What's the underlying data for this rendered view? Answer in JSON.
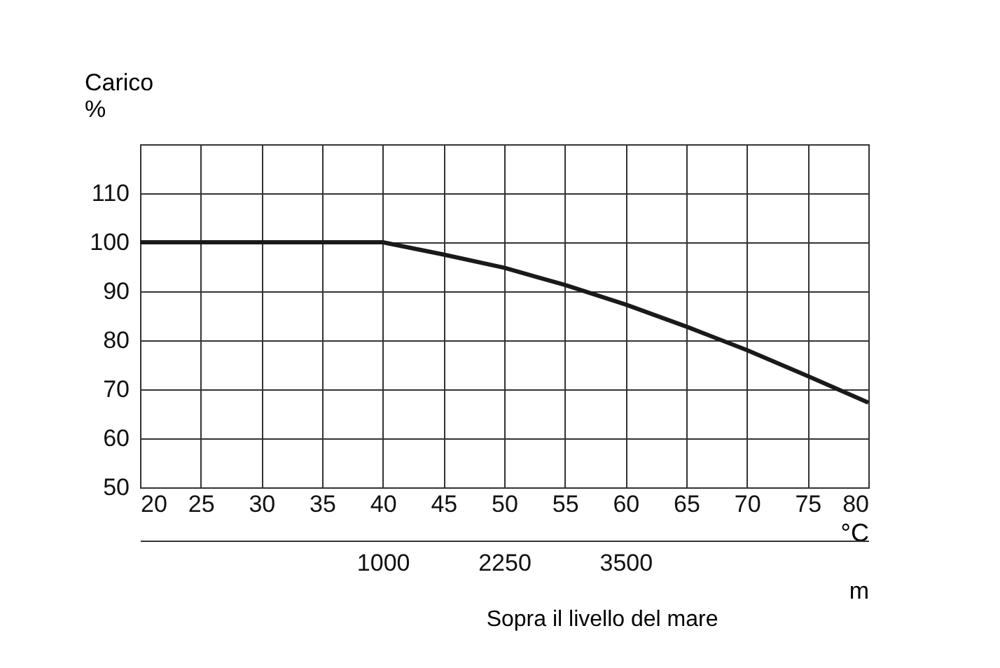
{
  "chart_data": {
    "type": "line",
    "ylabel": "Carico %",
    "xlabel": "°C",
    "x2label": "m",
    "annotations": [
      "Sopra il livello del mare"
    ],
    "x": [
      20,
      25,
      30,
      35,
      40,
      45,
      50,
      55,
      60,
      65,
      70,
      75,
      80
    ],
    "series": [
      {
        "color": "#1a1a1a",
        "values": [
          100,
          100,
          100,
          100,
          100,
          97.5,
          94.8,
          91.3,
          87.3,
          82.8,
          78,
          72.7,
          67.3
        ]
      }
    ],
    "xlim": [
      20,
      80
    ],
    "xticks": [
      20,
      25,
      30,
      35,
      40,
      45,
      50,
      55,
      60,
      65,
      70,
      75,
      80
    ],
    "ylim": [
      50,
      120
    ],
    "yticks": [
      50,
      60,
      70,
      80,
      90,
      100,
      110,
      {
        "value": 120,
        "label": null
      }
    ],
    "x2lim": [
      -1500,
      6000
    ],
    "x2ticks": [
      1000,
      2250,
      3500
    ],
    "grid": true,
    "marker": "none",
    "line_style": "solid"
  }
}
